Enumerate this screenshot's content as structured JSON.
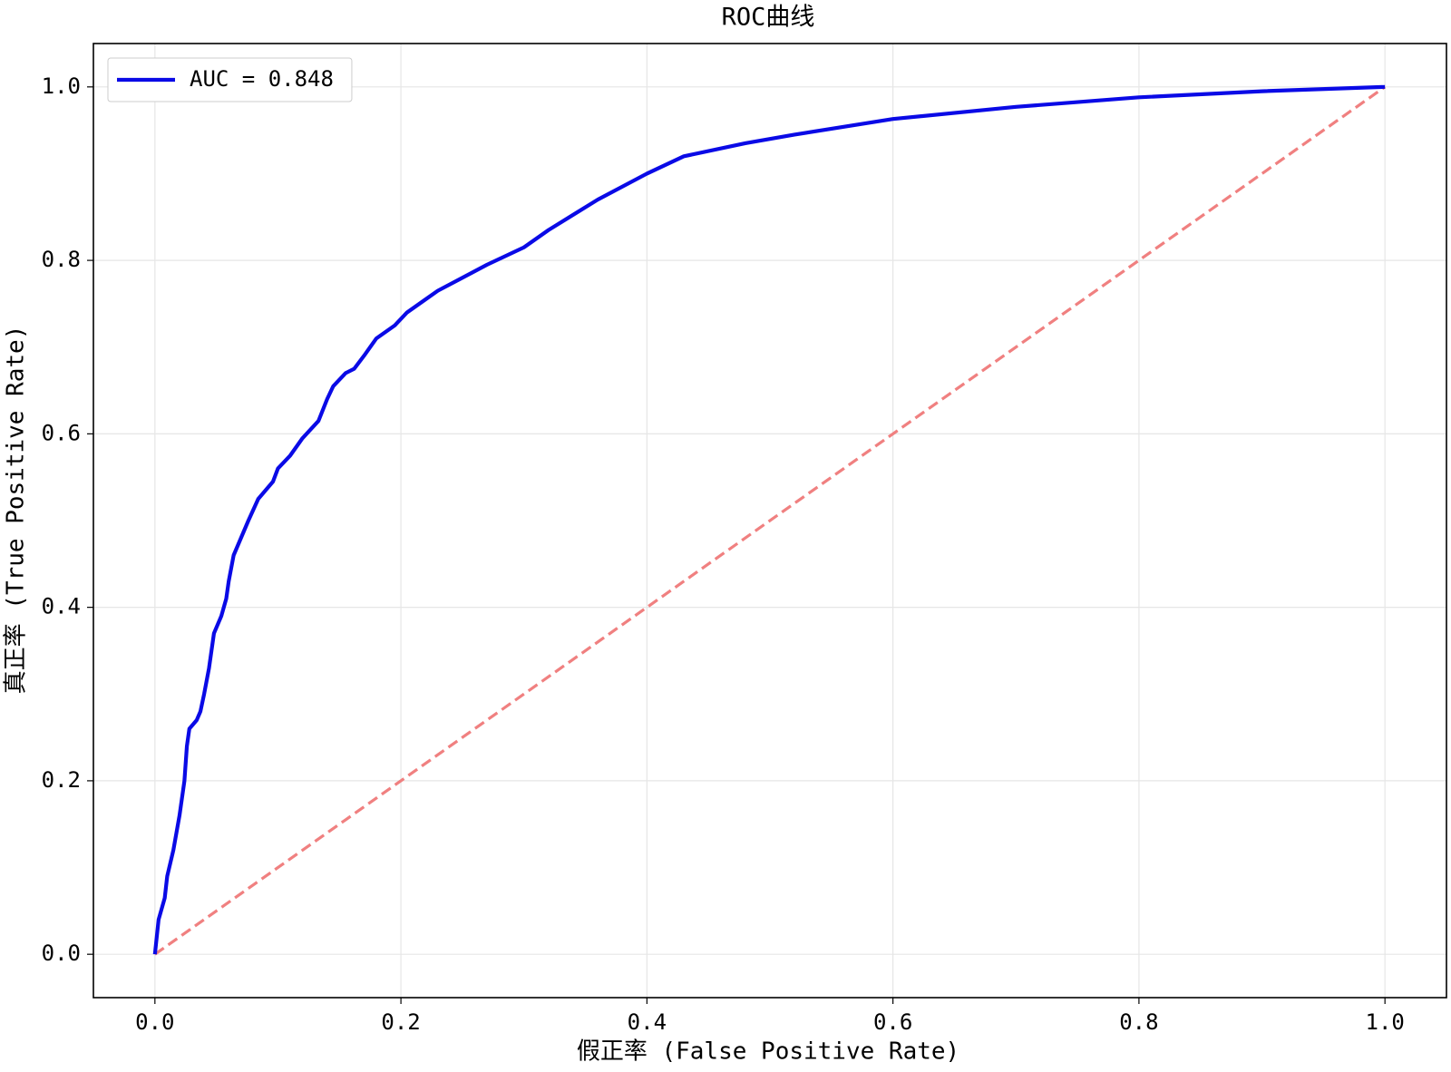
{
  "chart_data": {
    "type": "line",
    "title": "ROC曲线",
    "x_label": "假正率 (False Positive Rate)",
    "y_label": "真正率 (True Positive Rate)",
    "xlim": [
      -0.05,
      1.05
    ],
    "ylim": [
      -0.05,
      1.05
    ],
    "xticks": [
      {
        "value": 0,
        "label": "0.0"
      },
      0.2,
      0.4,
      0.6,
      0.8,
      {
        "value": 1,
        "label": "1.0"
      }
    ],
    "yticks": [
      {
        "value": 0,
        "label": "0.0"
      },
      0.2,
      0.4,
      0.6,
      0.8,
      {
        "value": 1,
        "label": "1.0"
      }
    ],
    "grid": true,
    "legend": "upper left",
    "series": [
      {
        "name": "AUC = 0.848",
        "color": "#0a0ae6",
        "linestyle": "solid",
        "x": [
          0,
          0.003,
          0.008,
          0.01,
          0.015,
          0.02,
          0.024,
          0.026,
          0.028,
          0.034,
          0.037,
          0.04,
          0.044,
          0.048,
          0.054,
          0.058,
          0.06,
          0.064,
          0.07,
          0.076,
          0.084,
          0.096,
          0.1,
          0.11,
          0.12,
          0.133,
          0.14,
          0.145,
          0.155,
          0.162,
          0.17,
          0.18,
          0.195,
          0.205,
          0.22,
          0.23,
          0.25,
          0.27,
          0.3,
          0.32,
          0.36,
          0.4,
          0.43,
          0.48,
          0.52,
          0.6,
          0.7,
          0.8,
          0.9,
          1
        ],
        "values": [
          0,
          0.04,
          0.065,
          0.09,
          0.12,
          0.16,
          0.2,
          0.24,
          0.26,
          0.27,
          0.28,
          0.3,
          0.33,
          0.37,
          0.39,
          0.41,
          0.43,
          0.46,
          0.48,
          0.5,
          0.525,
          0.545,
          0.56,
          0.575,
          0.595,
          0.615,
          0.64,
          0.655,
          0.67,
          0.675,
          0.69,
          0.71,
          0.725,
          0.74,
          0.755,
          0.765,
          0.78,
          0.795,
          0.815,
          0.835,
          0.87,
          0.9,
          0.92,
          0.935,
          0.945,
          0.963,
          0.977,
          0.988,
          0.995,
          1
        ]
      },
      {
        "color": "#f08080",
        "linestyle": "dashed",
        "x": [
          0,
          1
        ],
        "values": [
          0,
          1
        ]
      }
    ]
  }
}
